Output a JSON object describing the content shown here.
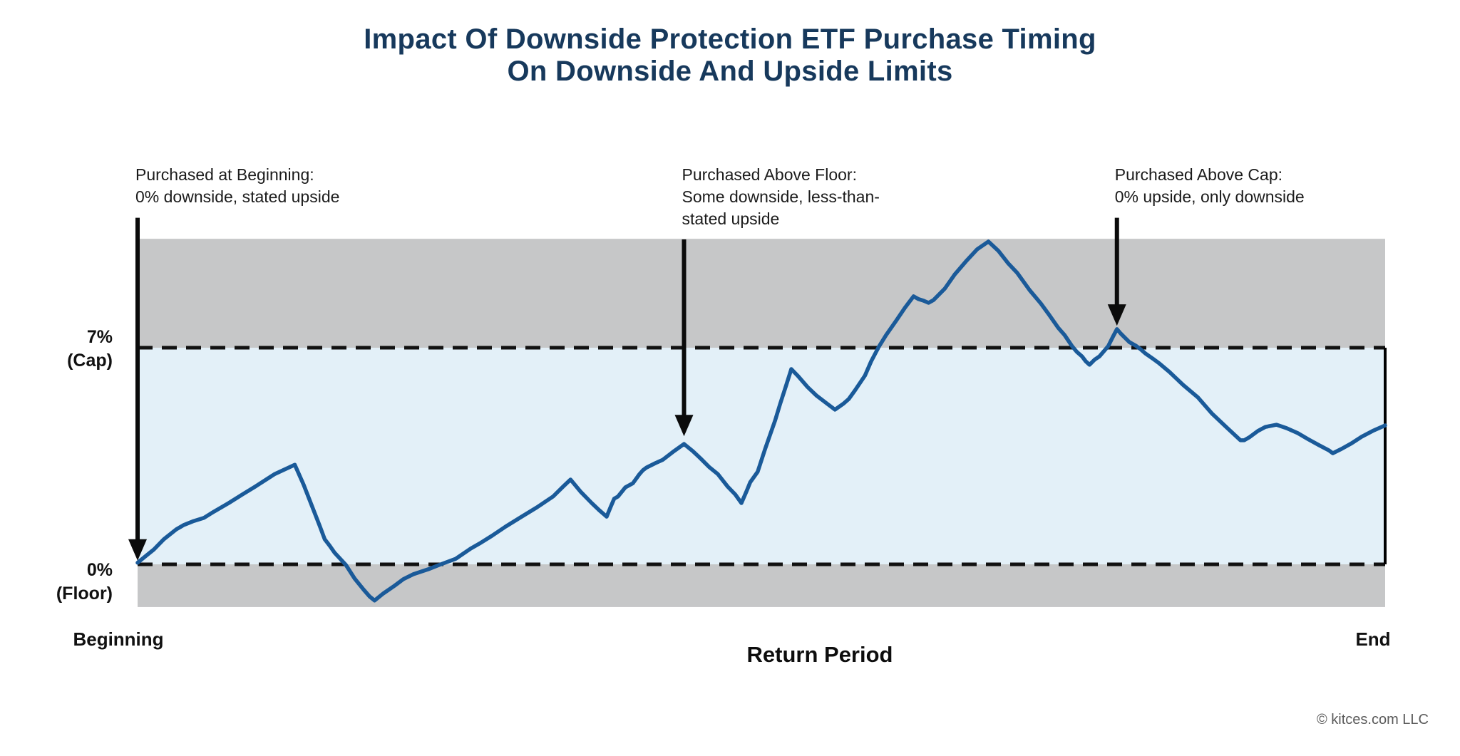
{
  "title": {
    "line1": "Impact Of Downside Protection ETF Purchase Timing",
    "line2": "On Downside And Upside Limits"
  },
  "footer": {
    "copyright": "© kitces.com LLC"
  },
  "colors": {
    "title_navy": "#17395c",
    "line_blue": "#1a5a99",
    "band_gray": "#c6c7c8",
    "band_light_blue": "#e3f0f8",
    "dashed_line": "#111111",
    "arrow_black": "#0b0b0b",
    "copyright_gray": "#5a5a5a"
  },
  "chart_data": {
    "type": "line",
    "title": "Impact Of Downside Protection ETF Purchase Timing On Downside And Upside Limits",
    "xlabel": "Return Period",
    "x_axis": {
      "start_label": "Beginning",
      "end_label": "End",
      "title": "Return Period"
    },
    "y_axis": {
      "cap_label": "7%\n(Cap)",
      "floor_label": "0%\n(Floor)"
    },
    "x_unit": "percent_of_return_period_0_to_100",
    "y_unit": "percent_return",
    "ylim": [
      -1.38,
      10.52
    ],
    "cap": {
      "value": 7,
      "label": "7% (Cap)"
    },
    "floor": {
      "value": 0,
      "label": "0% (Floor)"
    },
    "grid": false,
    "legend": false,
    "bands": [
      {
        "name": "above-cap",
        "from": 7,
        "to": 10.52,
        "color": "#c6c7c8"
      },
      {
        "name": "floor-to-cap",
        "from": 0,
        "to": 7,
        "color": "#e3f0f8"
      },
      {
        "name": "below-floor",
        "from": -1.38,
        "to": 0,
        "color": "#c6c7c8"
      }
    ],
    "annotations": [
      {
        "id": "purchased-at-beginning",
        "text": "Purchased at Beginning:\n0% downside, stated upside",
        "x": 0,
        "arrow_top_y": 11.2,
        "arrow_tip_y": 0.12
      },
      {
        "id": "purchased-above-floor",
        "text": "Purchased Above Floor:\nSome downside, less-than-\nstated upside",
        "x": 43.8,
        "arrow_top_y": 10.5,
        "arrow_tip_y": 4.14
      },
      {
        "id": "purchased-above-cap",
        "text": "Purchased Above Cap:\n0% upside, only downside",
        "x": 78.5,
        "arrow_top_y": 11.2,
        "arrow_tip_y": 7.71
      }
    ],
    "series": [
      {
        "name": "etf-return-path",
        "color": "#1a5a99",
        "points": [
          [
            0,
            0.05
          ],
          [
            0.6,
            0.25
          ],
          [
            1.3,
            0.48
          ],
          [
            2.1,
            0.81
          ],
          [
            3.1,
            1.13
          ],
          [
            3.7,
            1.27
          ],
          [
            4.5,
            1.4
          ],
          [
            5.3,
            1.5
          ],
          [
            6.1,
            1.7
          ],
          [
            7.3,
            1.98
          ],
          [
            8.4,
            2.26
          ],
          [
            9.5,
            2.53
          ],
          [
            11,
            2.92
          ],
          [
            12.6,
            3.22
          ],
          [
            13.3,
            2.58
          ],
          [
            13.9,
            1.96
          ],
          [
            14.6,
            1.24
          ],
          [
            15,
            0.81
          ],
          [
            15.4,
            0.6
          ],
          [
            15.8,
            0.37
          ],
          [
            16.7,
            -0.02
          ],
          [
            17.4,
            -0.46
          ],
          [
            18.1,
            -0.81
          ],
          [
            18.6,
            -1.04
          ],
          [
            19,
            -1.17
          ],
          [
            19.7,
            -0.94
          ],
          [
            20.6,
            -0.69
          ],
          [
            21.3,
            -0.48
          ],
          [
            22.1,
            -0.32
          ],
          [
            23.3,
            -0.16
          ],
          [
            24.3,
            0
          ],
          [
            25.5,
            0.18
          ],
          [
            26.7,
            0.51
          ],
          [
            27.4,
            0.67
          ],
          [
            28.4,
            0.92
          ],
          [
            29.5,
            1.22
          ],
          [
            30.7,
            1.52
          ],
          [
            32,
            1.84
          ],
          [
            33.3,
            2.19
          ],
          [
            34.1,
            2.51
          ],
          [
            34.7,
            2.74
          ],
          [
            35.5,
            2.35
          ],
          [
            36.4,
            1.98
          ],
          [
            37,
            1.75
          ],
          [
            37.4,
            1.61
          ],
          [
            37.6,
            1.54
          ],
          [
            37.9,
            1.84
          ],
          [
            38.2,
            2.12
          ],
          [
            38.5,
            2.19
          ],
          [
            39.1,
            2.49
          ],
          [
            39.7,
            2.62
          ],
          [
            40.2,
            2.9
          ],
          [
            40.5,
            3.04
          ],
          [
            40.8,
            3.13
          ],
          [
            41.5,
            3.27
          ],
          [
            42.1,
            3.38
          ],
          [
            43,
            3.66
          ],
          [
            43.8,
            3.89
          ],
          [
            44.5,
            3.66
          ],
          [
            45.1,
            3.43
          ],
          [
            45.8,
            3.15
          ],
          [
            46.5,
            2.92
          ],
          [
            47.3,
            2.51
          ],
          [
            47.9,
            2.26
          ],
          [
            48.4,
            1.98
          ],
          [
            48.8,
            2.35
          ],
          [
            49.1,
            2.65
          ],
          [
            49.7,
            2.99
          ],
          [
            50.3,
            3.73
          ],
          [
            50.7,
            4.19
          ],
          [
            51.1,
            4.65
          ],
          [
            51.5,
            5.18
          ],
          [
            52,
            5.8
          ],
          [
            52.4,
            6.31
          ],
          [
            52.9,
            6.1
          ],
          [
            53.7,
            5.73
          ],
          [
            54.4,
            5.46
          ],
          [
            55.3,
            5.18
          ],
          [
            55.9,
            5
          ],
          [
            56.6,
            5.2
          ],
          [
            57,
            5.34
          ],
          [
            57.5,
            5.62
          ],
          [
            58.3,
            6.1
          ],
          [
            58.8,
            6.56
          ],
          [
            59.4,
            7.02
          ],
          [
            60,
            7.41
          ],
          [
            60.8,
            7.87
          ],
          [
            61.5,
            8.29
          ],
          [
            62.2,
            8.66
          ],
          [
            62.6,
            8.57
          ],
          [
            63,
            8.52
          ],
          [
            63.4,
            8.45
          ],
          [
            63.8,
            8.54
          ],
          [
            64.7,
            8.91
          ],
          [
            65.5,
            9.37
          ],
          [
            66.4,
            9.79
          ],
          [
            67.3,
            10.18
          ],
          [
            68.2,
            10.43
          ],
          [
            69,
            10.13
          ],
          [
            69.8,
            9.72
          ],
          [
            70.5,
            9.42
          ],
          [
            71.5,
            8.86
          ],
          [
            72.4,
            8.43
          ],
          [
            73,
            8.1
          ],
          [
            73.8,
            7.64
          ],
          [
            74.3,
            7.41
          ],
          [
            74.9,
            7.05
          ],
          [
            75.3,
            6.86
          ],
          [
            75.7,
            6.72
          ],
          [
            76,
            6.56
          ],
          [
            76.3,
            6.45
          ],
          [
            76.7,
            6.61
          ],
          [
            77.1,
            6.72
          ],
          [
            77.5,
            6.91
          ],
          [
            77.8,
            7.05
          ],
          [
            78.2,
            7.37
          ],
          [
            78.5,
            7.6
          ],
          [
            78.8,
            7.46
          ],
          [
            79.1,
            7.34
          ],
          [
            79.5,
            7.18
          ],
          [
            80,
            7.07
          ],
          [
            80.4,
            6.95
          ],
          [
            80.8,
            6.81
          ],
          [
            81.5,
            6.61
          ],
          [
            81.9,
            6.49
          ],
          [
            82.7,
            6.22
          ],
          [
            83.8,
            5.8
          ],
          [
            85,
            5.39
          ],
          [
            86.1,
            4.88
          ],
          [
            87.3,
            4.42
          ],
          [
            88.4,
            4.01
          ],
          [
            88.7,
            4.01
          ],
          [
            89.1,
            4.1
          ],
          [
            89.8,
            4.31
          ],
          [
            90.4,
            4.44
          ],
          [
            91.3,
            4.51
          ],
          [
            92.1,
            4.4
          ],
          [
            93,
            4.24
          ],
          [
            93.8,
            4.05
          ],
          [
            94.7,
            3.85
          ],
          [
            95.5,
            3.68
          ],
          [
            95.8,
            3.59
          ],
          [
            96.5,
            3.73
          ],
          [
            97.3,
            3.91
          ],
          [
            98.1,
            4.12
          ],
          [
            99,
            4.31
          ],
          [
            100,
            4.49
          ]
        ]
      }
    ]
  }
}
